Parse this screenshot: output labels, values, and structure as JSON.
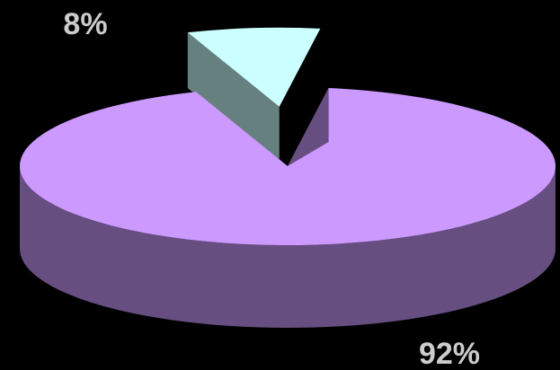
{
  "chart_data": {
    "type": "pie",
    "title": "",
    "categories": [
      "",
      ""
    ],
    "values": [
      92,
      8
    ],
    "labels": [
      "92%",
      "8%"
    ],
    "colors": {
      "slice_large_top": "#cc99ff",
      "slice_large_side": "#664e80",
      "slice_small_top": "#ccffff",
      "slice_small_side": "#668080",
      "background": "#000000"
    },
    "legend": "none",
    "style": "3d-exploded"
  }
}
